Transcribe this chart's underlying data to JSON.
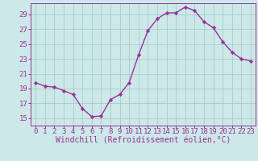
{
  "x": [
    0,
    1,
    2,
    3,
    4,
    5,
    6,
    7,
    8,
    9,
    10,
    11,
    12,
    13,
    14,
    15,
    16,
    17,
    18,
    19,
    20,
    21,
    22,
    23
  ],
  "y": [
    19.8,
    19.3,
    19.2,
    18.7,
    18.2,
    16.3,
    15.2,
    15.3,
    17.5,
    18.2,
    19.8,
    23.5,
    26.8,
    28.4,
    29.2,
    29.2,
    30.0,
    29.5,
    28.0,
    27.2,
    25.3,
    23.9,
    23.0,
    22.7
  ],
  "line_color": "#993399",
  "marker": "D",
  "markersize": 2.2,
  "linewidth": 1.0,
  "bg_color": "#cce8e8",
  "grid_color": "#aacccc",
  "tick_color": "#993399",
  "label_color": "#993399",
  "xlabel": "Windchill (Refroidissement éolien,°C)",
  "ylabel": "",
  "xlim": [
    -0.5,
    23.5
  ],
  "ylim": [
    14.0,
    30.5
  ],
  "yticks": [
    15,
    17,
    19,
    21,
    23,
    25,
    27,
    29
  ],
  "xticks": [
    0,
    1,
    2,
    3,
    4,
    5,
    6,
    7,
    8,
    9,
    10,
    11,
    12,
    13,
    14,
    15,
    16,
    17,
    18,
    19,
    20,
    21,
    22,
    23
  ],
  "fontsize": 6.5,
  "xlabel_fontsize": 7.0
}
